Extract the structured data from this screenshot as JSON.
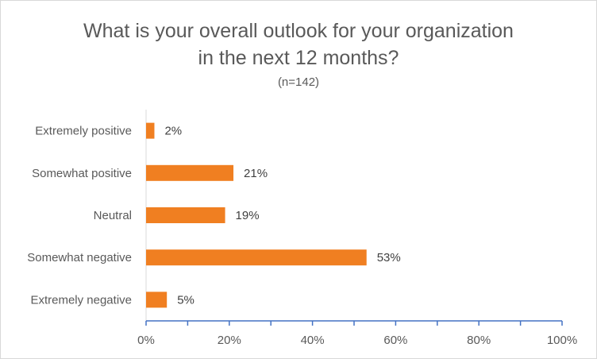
{
  "chart_data": {
    "type": "bar",
    "orientation": "horizontal",
    "title": "What is your overall outlook for your organization in the next 12 months?",
    "title_lines": [
      "What is your overall outlook for your organization",
      "in the next 12 months?"
    ],
    "subtitle": "(n=142)",
    "categories": [
      "Extremely positive",
      "Somewhat positive",
      "Neutral",
      "Somewhat negative",
      "Extremely negative"
    ],
    "values": [
      2,
      21,
      19,
      53,
      5
    ],
    "data_labels": [
      "2%",
      "21%",
      "19%",
      "53%",
      "5%"
    ],
    "xlim": [
      0,
      100
    ],
    "x_ticks": [
      0,
      20,
      40,
      60,
      80,
      100
    ],
    "x_tick_labels": [
      "0%",
      "20%",
      "40%",
      "60%",
      "80%",
      "100%"
    ],
    "xlabel": "",
    "ylabel": "",
    "grid": false,
    "legend": "none",
    "colors": {
      "bar": "#f07f21",
      "axis": "#4472c4",
      "text": "#595959",
      "label": "#404040"
    }
  }
}
